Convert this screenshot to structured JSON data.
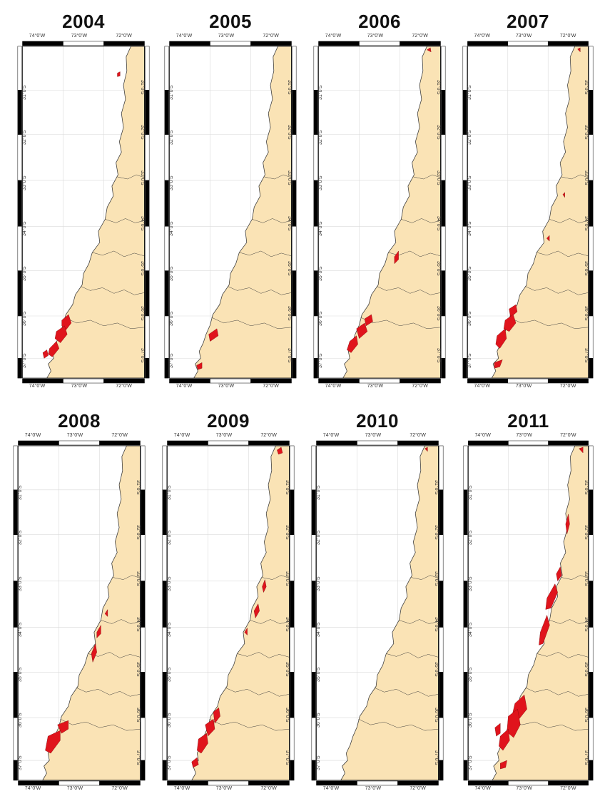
{
  "figure": {
    "panels": [
      {
        "year": "2004",
        "blooms": "b2004"
      },
      {
        "year": "2005",
        "blooms": "b2005"
      },
      {
        "year": "2006",
        "blooms": "b2006"
      },
      {
        "year": "2007",
        "blooms": "b2007"
      },
      {
        "year": "2008",
        "blooms": "b2008"
      },
      {
        "year": "2009",
        "blooms": "b2009"
      },
      {
        "year": "2010",
        "blooms": "b2010"
      },
      {
        "year": "2011",
        "blooms": "b2011"
      }
    ],
    "lon_labels": [
      "74°0'W",
      "73°0'W",
      "72°0'W"
    ],
    "lat_labels": [
      "31°0'S",
      "32°0'S",
      "33°0'S",
      "34°0'S",
      "35°0'S",
      "36°0'S",
      "37°0'S"
    ]
  },
  "colors": {
    "land": "#fae3b5",
    "bloom": "#e0141c",
    "frame_dark": "#000000",
    "coast": "#3a3a3a",
    "grid": "#d9d9d9"
  }
}
